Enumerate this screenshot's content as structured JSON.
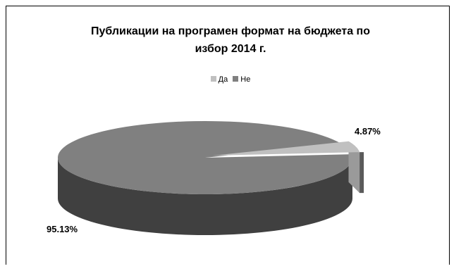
{
  "chart_data": {
    "type": "pie",
    "title": "Публикации на програмен формат на бюджета по избор 2014 г.",
    "title_lines": [
      "Публикации на програмен формат на бюджета по",
      "избор 2014 г."
    ],
    "categories": [
      "Да",
      "Не"
    ],
    "values": [
      4.87,
      95.13
    ],
    "data_labels": [
      "4.87%",
      "95.13%"
    ],
    "colors": [
      "#c0c0c0",
      "#808080"
    ],
    "side_colors": [
      "#9a9a9a",
      "#404040"
    ],
    "legend_position": "top",
    "style": "3d"
  }
}
